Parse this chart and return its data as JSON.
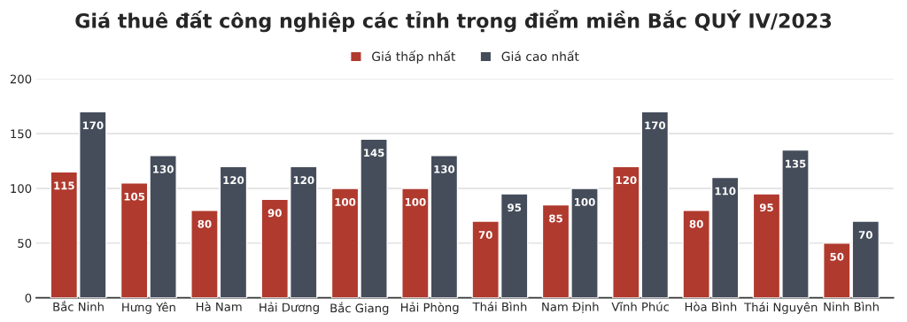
{
  "chart_data": {
    "type": "bar",
    "title": "Giá thuê đất công nghiệp các tỉnh trọng điểm miền Bắc QUÝ IV/2023",
    "categories": [
      "Bắc Ninh",
      "Hưng Yên",
      "Hà Nam",
      "Hải Dương",
      "Bắc Giang",
      "Hải Phòng",
      "Thái Bình",
      "Nam Định",
      "Vĩnh Phúc",
      "Hòa Bình",
      "Thái Nguyên",
      "Ninh Bình"
    ],
    "series": [
      {
        "name": "Giá thấp nhất",
        "color": "#b03a2e",
        "values": [
          115,
          105,
          80,
          90,
          100,
          100,
          70,
          85,
          120,
          80,
          95,
          50
        ]
      },
      {
        "name": "Giá cao nhất",
        "color": "#454d5b",
        "values": [
          170,
          130,
          120,
          120,
          145,
          130,
          95,
          100,
          170,
          110,
          135,
          70
        ]
      }
    ],
    "ylim": [
      0,
      200
    ],
    "yticks": [
      0,
      50,
      100,
      150,
      200
    ],
    "grid": "y",
    "legend": "top",
    "data_labels": true
  }
}
